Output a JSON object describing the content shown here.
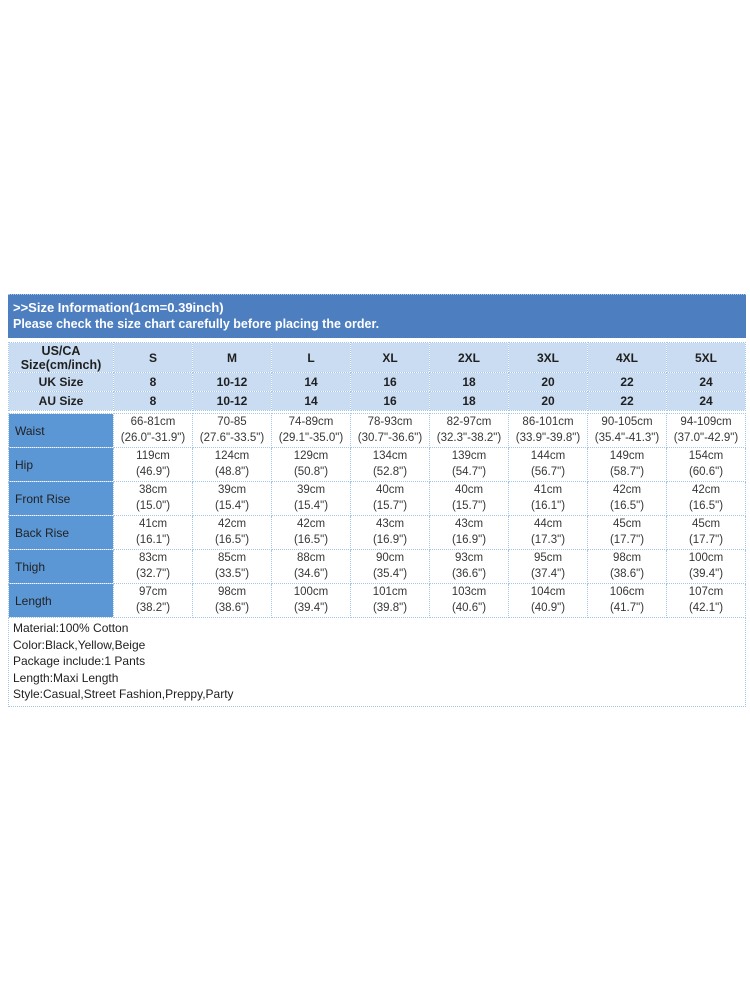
{
  "banner": {
    "title": ">>Size Information(1cm=0.39inch)",
    "subtitle": "Please check the size chart carefully before placing the order."
  },
  "colors": {
    "banner_bg": "#4d7ec0",
    "banner_text": "#ffffff",
    "header_bg": "#c9dcf1",
    "label_bg": "#5b96d5",
    "grid_line": "#a3c6ea",
    "text_dark": "#1f1f1f"
  },
  "size_table": {
    "corner_line1": "US/CA",
    "corner_line2": "Size(cm/inch)",
    "size_columns": [
      "S",
      "M",
      "L",
      "XL",
      "2XL",
      "3XL",
      "4XL",
      "5XL"
    ],
    "header_rows": [
      {
        "label": "UK Size",
        "values": [
          "8",
          "10-12",
          "14",
          "16",
          "18",
          "20",
          "22",
          "24"
        ]
      },
      {
        "label": "AU Size",
        "values": [
          "8",
          "10-12",
          "14",
          "16",
          "18",
          "20",
          "22",
          "24"
        ]
      }
    ],
    "measurement_rows": [
      {
        "label": "Waist",
        "cells": [
          [
            "66-81cm",
            "(26.0\"-31.9\")"
          ],
          [
            "70-85",
            "(27.6\"-33.5\")"
          ],
          [
            "74-89cm",
            "(29.1\"-35.0\")"
          ],
          [
            "78-93cm",
            "(30.7\"-36.6\")"
          ],
          [
            "82-97cm",
            "(32.3\"-38.2\")"
          ],
          [
            "86-101cm",
            "(33.9\"-39.8\")"
          ],
          [
            "90-105cm",
            "(35.4\"-41.3\")"
          ],
          [
            "94-109cm",
            "(37.0\"-42.9\")"
          ]
        ]
      },
      {
        "label": "Hip",
        "cells": [
          [
            "119cm",
            "(46.9\")"
          ],
          [
            "124cm",
            "(48.8\")"
          ],
          [
            "129cm",
            "(50.8\")"
          ],
          [
            "134cm",
            "(52.8\")"
          ],
          [
            "139cm",
            "(54.7\")"
          ],
          [
            "144cm",
            "(56.7\")"
          ],
          [
            "149cm",
            "(58.7\")"
          ],
          [
            "154cm",
            "(60.6\")"
          ]
        ]
      },
      {
        "label": "Front Rise",
        "cells": [
          [
            "38cm",
            "(15.0\")"
          ],
          [
            "39cm",
            "(15.4\")"
          ],
          [
            "39cm",
            "(15.4\")"
          ],
          [
            "40cm",
            "(15.7\")"
          ],
          [
            "40cm",
            "(15.7\")"
          ],
          [
            "41cm",
            "(16.1\")"
          ],
          [
            "42cm",
            "(16.5\")"
          ],
          [
            "42cm",
            "(16.5\")"
          ]
        ]
      },
      {
        "label": "Back Rise",
        "cells": [
          [
            "41cm",
            "(16.1\")"
          ],
          [
            "42cm",
            "(16.5\")"
          ],
          [
            "42cm",
            "(16.5\")"
          ],
          [
            "43cm",
            "(16.9\")"
          ],
          [
            "43cm",
            "(16.9\")"
          ],
          [
            "44cm",
            "(17.3\")"
          ],
          [
            "45cm",
            "(17.7\")"
          ],
          [
            "45cm",
            "(17.7\")"
          ]
        ]
      },
      {
        "label": "Thigh",
        "cells": [
          [
            "83cm",
            "(32.7\")"
          ],
          [
            "85cm",
            "(33.5\")"
          ],
          [
            "88cm",
            "(34.6\")"
          ],
          [
            "90cm",
            "(35.4\")"
          ],
          [
            "93cm",
            "(36.6\")"
          ],
          [
            "95cm",
            "(37.4\")"
          ],
          [
            "98cm",
            "(38.6\")"
          ],
          [
            "100cm",
            "(39.4\")"
          ]
        ]
      },
      {
        "label": "Length",
        "cells": [
          [
            "97cm",
            "(38.2\")"
          ],
          [
            "98cm",
            "(38.6\")"
          ],
          [
            "100cm",
            "(39.4\")"
          ],
          [
            "101cm",
            "(39.8\")"
          ],
          [
            "103cm",
            "(40.6\")"
          ],
          [
            "104cm",
            "(40.9\")"
          ],
          [
            "106cm",
            "(41.7\")"
          ],
          [
            "107cm",
            "(42.1\")"
          ]
        ]
      }
    ]
  },
  "details": {
    "lines": [
      "Material:100% Cotton",
      "Color:Black,Yellow,Beige",
      "Package include:1 Pants",
      "Length:Maxi Length",
      "Style:Casual,Street Fashion,Preppy,Party"
    ]
  }
}
